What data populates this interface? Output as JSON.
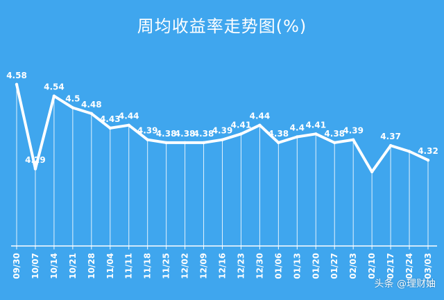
{
  "colors": {
    "background": "#3fa6ee",
    "line": "#ffffff",
    "label": "#ffffff"
  },
  "chart_data": {
    "type": "line",
    "title": "周均收益率走势图(%)",
    "xlabel": "",
    "ylabel": "",
    "grid": false,
    "categories": [
      "09/30",
      "10/07",
      "10/14",
      "10/21",
      "10/28",
      "11/04",
      "11/11",
      "11/18",
      "11/25",
      "12/02",
      "12/09",
      "12/16",
      "12/23",
      "12/30",
      "01/06",
      "01/13",
      "01/20",
      "01/27",
      "02/03",
      "02/10",
      "02/17",
      "02/24",
      "03/03"
    ],
    "series": [
      {
        "values": [
          4.58,
          4.29,
          4.54,
          4.5,
          4.48,
          4.43,
          4.44,
          4.39,
          4.38,
          4.38,
          4.38,
          4.39,
          4.41,
          4.44,
          4.38,
          4.4,
          4.41,
          4.38,
          4.39,
          4.28,
          4.37,
          4.35,
          4.32
        ],
        "labels": [
          "4.58",
          "4.29",
          "4.54",
          "4.5",
          "4.48",
          "4.43",
          "4.44",
          "4.39",
          "4.38",
          "4.38",
          "4.38",
          "4.39",
          "4.41",
          "4.44",
          "4.38",
          "4.4",
          "4.41",
          "4.38",
          "4.39",
          "",
          "4.37",
          "",
          "4.32"
        ]
      }
    ],
    "ylim": [
      4.18,
      4.62
    ]
  },
  "watermark": "头条 @理财妯"
}
